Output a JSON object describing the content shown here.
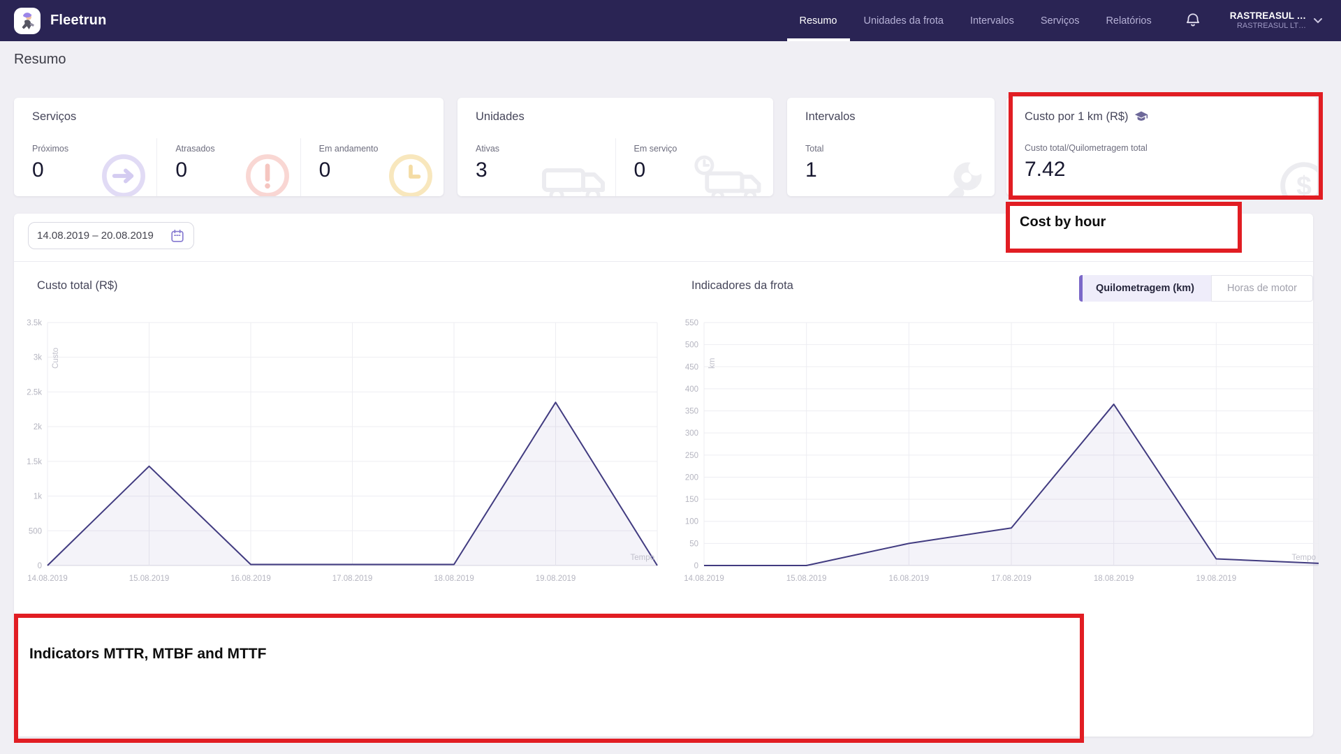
{
  "brand": {
    "name": "Fleetrun",
    "logo_icon": "fleetrun-mascot"
  },
  "nav": {
    "items": [
      {
        "label": "Resumo",
        "active": true
      },
      {
        "label": "Unidades da frota",
        "active": false
      },
      {
        "label": "Intervalos",
        "active": false
      },
      {
        "label": "Serviços",
        "active": false
      },
      {
        "label": "Relatórios",
        "active": false
      }
    ],
    "bell_icon": "bell",
    "account": {
      "name": "RASTREASUL …",
      "company": "RASTREASUL LT…",
      "chevron_icon": "chevron-down"
    }
  },
  "page": {
    "title": "Resumo"
  },
  "summary_cards": [
    {
      "title": "Serviços",
      "metrics": [
        {
          "label": "Próximos",
          "value": "0",
          "icon": "arrow-circle"
        },
        {
          "label": "Atrasados",
          "value": "0",
          "icon": "alert-circle"
        },
        {
          "label": "Em andamento",
          "value": "0",
          "icon": "clock"
        }
      ]
    },
    {
      "title": "Unidades",
      "metrics": [
        {
          "label": "Ativas",
          "value": "3",
          "icon": "van"
        },
        {
          "label": "Em serviço",
          "value": "0",
          "icon": "van-clock"
        }
      ]
    },
    {
      "title": "Intervalos",
      "metrics": [
        {
          "label": "Total",
          "value": "1",
          "icon": "wrench"
        }
      ]
    },
    {
      "title": "Custo por 1 km (R$)",
      "title_icon": "graduation-cap",
      "metrics": [
        {
          "label": "Custo total/Quilometragem total",
          "value": "7.42",
          "icon": "coin"
        }
      ]
    }
  ],
  "filters": {
    "date_range": "14.08.2019 – 20.08.2019",
    "calendar_icon": "calendar"
  },
  "chart_data": [
    {
      "type": "area",
      "title": "Custo total (R$)",
      "x": [
        "14.08.2019",
        "15.08.2019",
        "16.08.2019",
        "17.08.2019",
        "18.08.2019",
        "19.08.2019",
        "20.08.2019"
      ],
      "values": [
        0,
        1430,
        15,
        15,
        15,
        2350,
        0
      ],
      "x_tick_labels": [
        "14.08.2019",
        "15.08.2019",
        "16.08.2019",
        "17.08.2019",
        "18.08.2019",
        "19.08.2019"
      ],
      "xlabel": "Tempo",
      "ylabel": "Custo",
      "ylim": [
        0,
        3500
      ],
      "ytick_step": 500,
      "ytick_labels": [
        "0",
        "500",
        "1k",
        "1.5k",
        "2k",
        "2.5k",
        "3k",
        "3.5k"
      ],
      "grid": true,
      "legend": "none",
      "line_color": "#413b80",
      "fill_color": "rgba(97,88,176,0.07)"
    },
    {
      "type": "area",
      "title": "Indicadores da frota",
      "toggle": [
        {
          "label": "Quilometragem (km)",
          "active": true
        },
        {
          "label": "Horas de motor",
          "active": false
        }
      ],
      "x": [
        "14.08.2019",
        "15.08.2019",
        "16.08.2019",
        "17.08.2019",
        "18.08.2019",
        "19.08.2019",
        "20.08.2019"
      ],
      "values": [
        0,
        0,
        50,
        85,
        365,
        15,
        5
      ],
      "x_tick_labels": [
        "14.08.2019",
        "15.08.2019",
        "16.08.2019",
        "17.08.2019",
        "18.08.2019",
        "19.08.2019"
      ],
      "xlabel": "Tempo",
      "ylabel": "km",
      "ylim": [
        0,
        550
      ],
      "ytick_step": 50,
      "ytick_labels": [
        "0",
        "50",
        "100",
        "150",
        "200",
        "250",
        "300",
        "350",
        "400",
        "450",
        "500",
        "550"
      ],
      "grid": true,
      "legend": "none",
      "line_color": "#413b80",
      "fill_color": "rgba(97,88,176,0.07)"
    }
  ],
  "annotations": {
    "color": "#e11d23",
    "cost_card_highlight": {
      "type": "box"
    },
    "cost_by_hour": {
      "label": "Cost by hour"
    },
    "indicators_note": {
      "label": "Indicators MTTR, MTBF and MTTF"
    }
  },
  "theme": {
    "header_bg": "#2a2454",
    "accent_purple": "#7b68c8",
    "page_bg": "#f0eff4",
    "line_color": "#413b80"
  }
}
